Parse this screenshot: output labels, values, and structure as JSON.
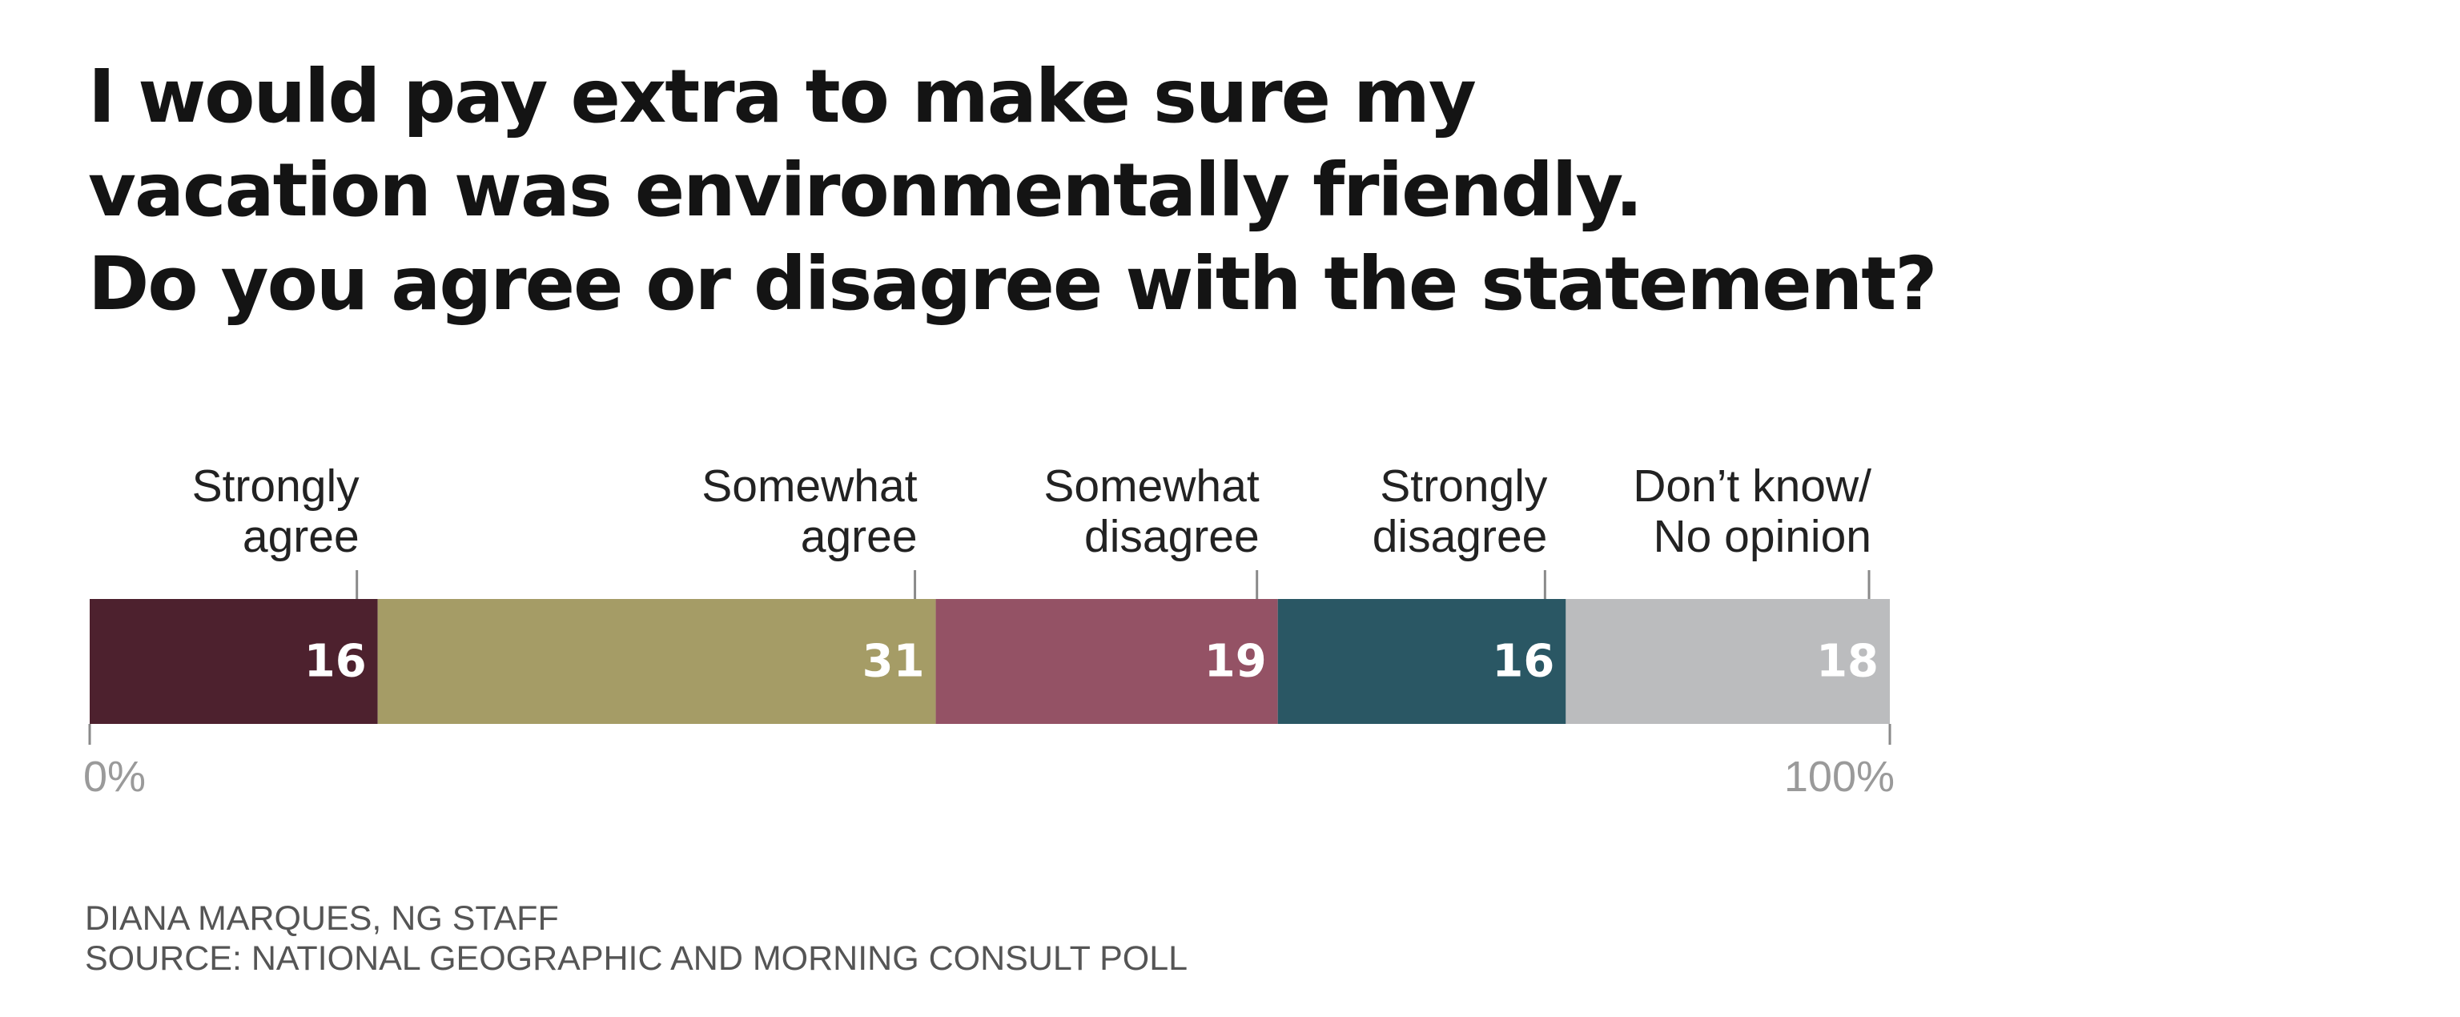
{
  "title_lines": [
    "I would pay extra to make sure my",
    "vacation was environmentally friendly.",
    "Do you agree or disagree with the statement?"
  ],
  "chart_data": {
    "type": "bar",
    "orientation": "horizontal-stacked",
    "title": "I would pay extra to make sure my vacation was environmentally friendly. Do you agree or disagree with the statement?",
    "unit": "%",
    "xlim": [
      0,
      100
    ],
    "axis_labels": {
      "min": "0%",
      "max": "100%"
    },
    "categories": [
      {
        "label_lines": [
          "Strongly",
          "agree"
        ],
        "value": 16,
        "color": "#4d212e"
      },
      {
        "label_lines": [
          "Somewhat",
          "agree"
        ],
        "value": 31,
        "color": "#a59c66"
      },
      {
        "label_lines": [
          "Somewhat",
          "disagree"
        ],
        "value": 19,
        "color": "#945265"
      },
      {
        "label_lines": [
          "Strongly",
          "disagree"
        ],
        "value": 16,
        "color": "#2a5764"
      },
      {
        "label_lines": [
          "Don’t know/",
          "No opinion"
        ],
        "value": 18,
        "color": "#bbbcbe"
      }
    ]
  },
  "footer": {
    "credit": "DIANA MARQUES, NG STAFF",
    "source": "SOURCE: NATIONAL GEOGRAPHIC AND MORNING CONSULT POLL"
  }
}
